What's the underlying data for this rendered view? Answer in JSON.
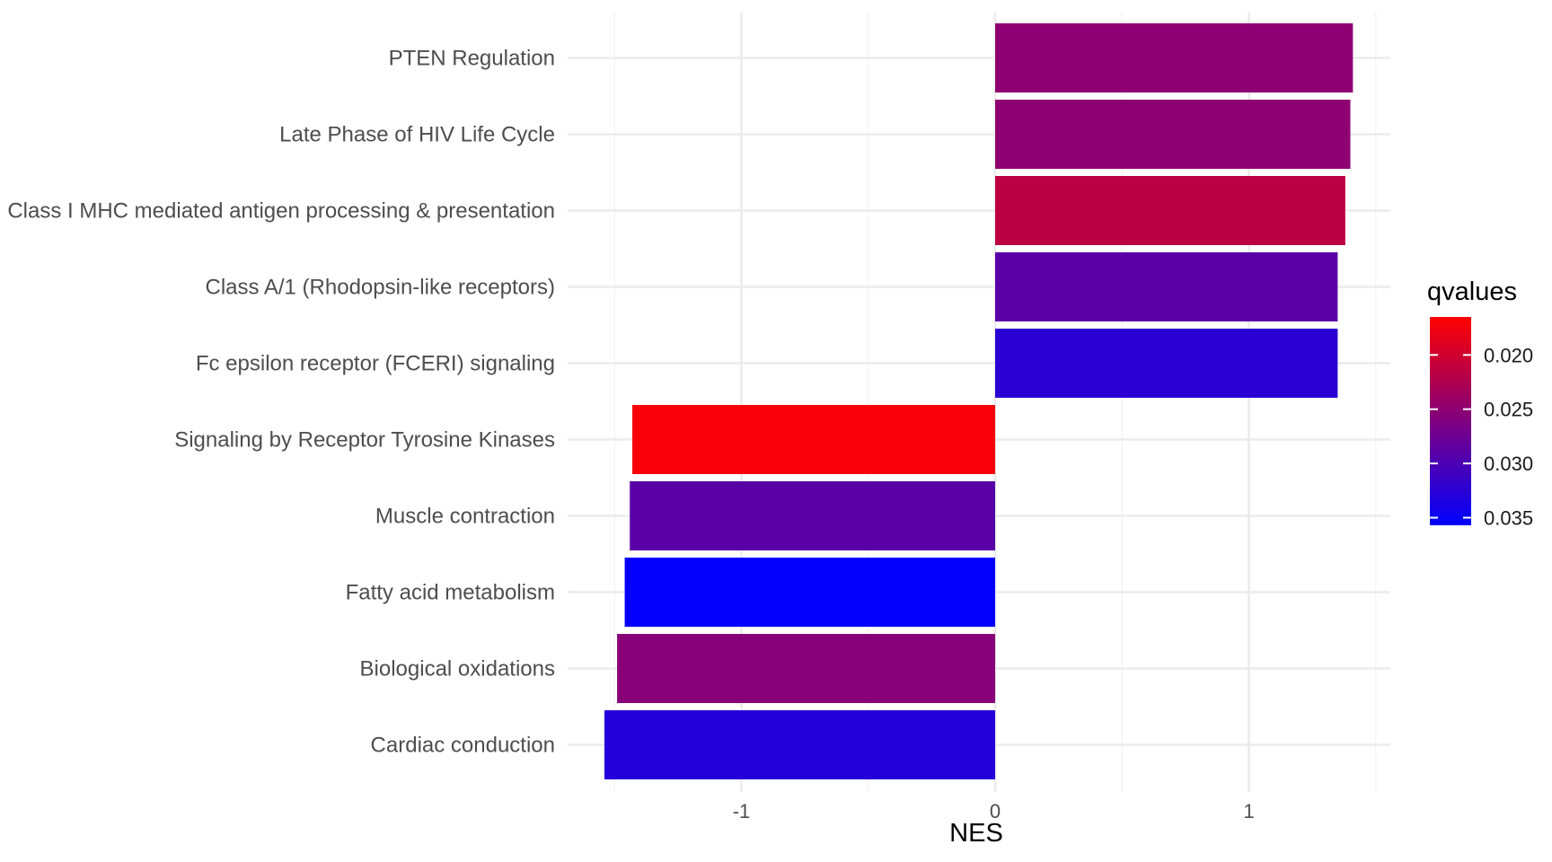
{
  "chart_data": {
    "type": "bar",
    "orientation": "horizontal",
    "xlabel": "NES",
    "ylabel": "",
    "xlim": [
      -1.5,
      1.5
    ],
    "x_ticks": [
      -1,
      0,
      1
    ],
    "x_tick_labels": [
      "-1",
      "0",
      "1"
    ],
    "grid": true,
    "categories": [
      "PTEN Regulation",
      "Late Phase of HIV Life Cycle",
      "Class I MHC mediated antigen processing & presentation",
      "Class A/1 (Rhodopsin-like receptors)",
      "Fc epsilon receptor (FCERI) signaling",
      "Signaling by Receptor Tyrosine Kinases",
      "Muscle contraction",
      "Fatty acid metabolism",
      "Biological oxidations",
      "Cardiac conduction"
    ],
    "values": [
      1.41,
      1.4,
      1.38,
      1.35,
      1.35,
      -1.43,
      -1.44,
      -1.46,
      -1.49,
      -1.54
    ],
    "qvalues": [
      0.025,
      0.025,
      0.0215,
      0.029,
      0.0325,
      0.017,
      0.029,
      0.0355,
      0.0255,
      0.033
    ],
    "legend": {
      "title": "qvalues",
      "position": "right",
      "range": [
        0.0165,
        0.0357
      ],
      "breaks": [
        0.02,
        0.025,
        0.03,
        0.035
      ],
      "break_labels": [
        "0.020",
        "0.025",
        "0.030",
        "0.035"
      ],
      "low_color": "#ff0000",
      "high_color": "#0000ff"
    }
  }
}
